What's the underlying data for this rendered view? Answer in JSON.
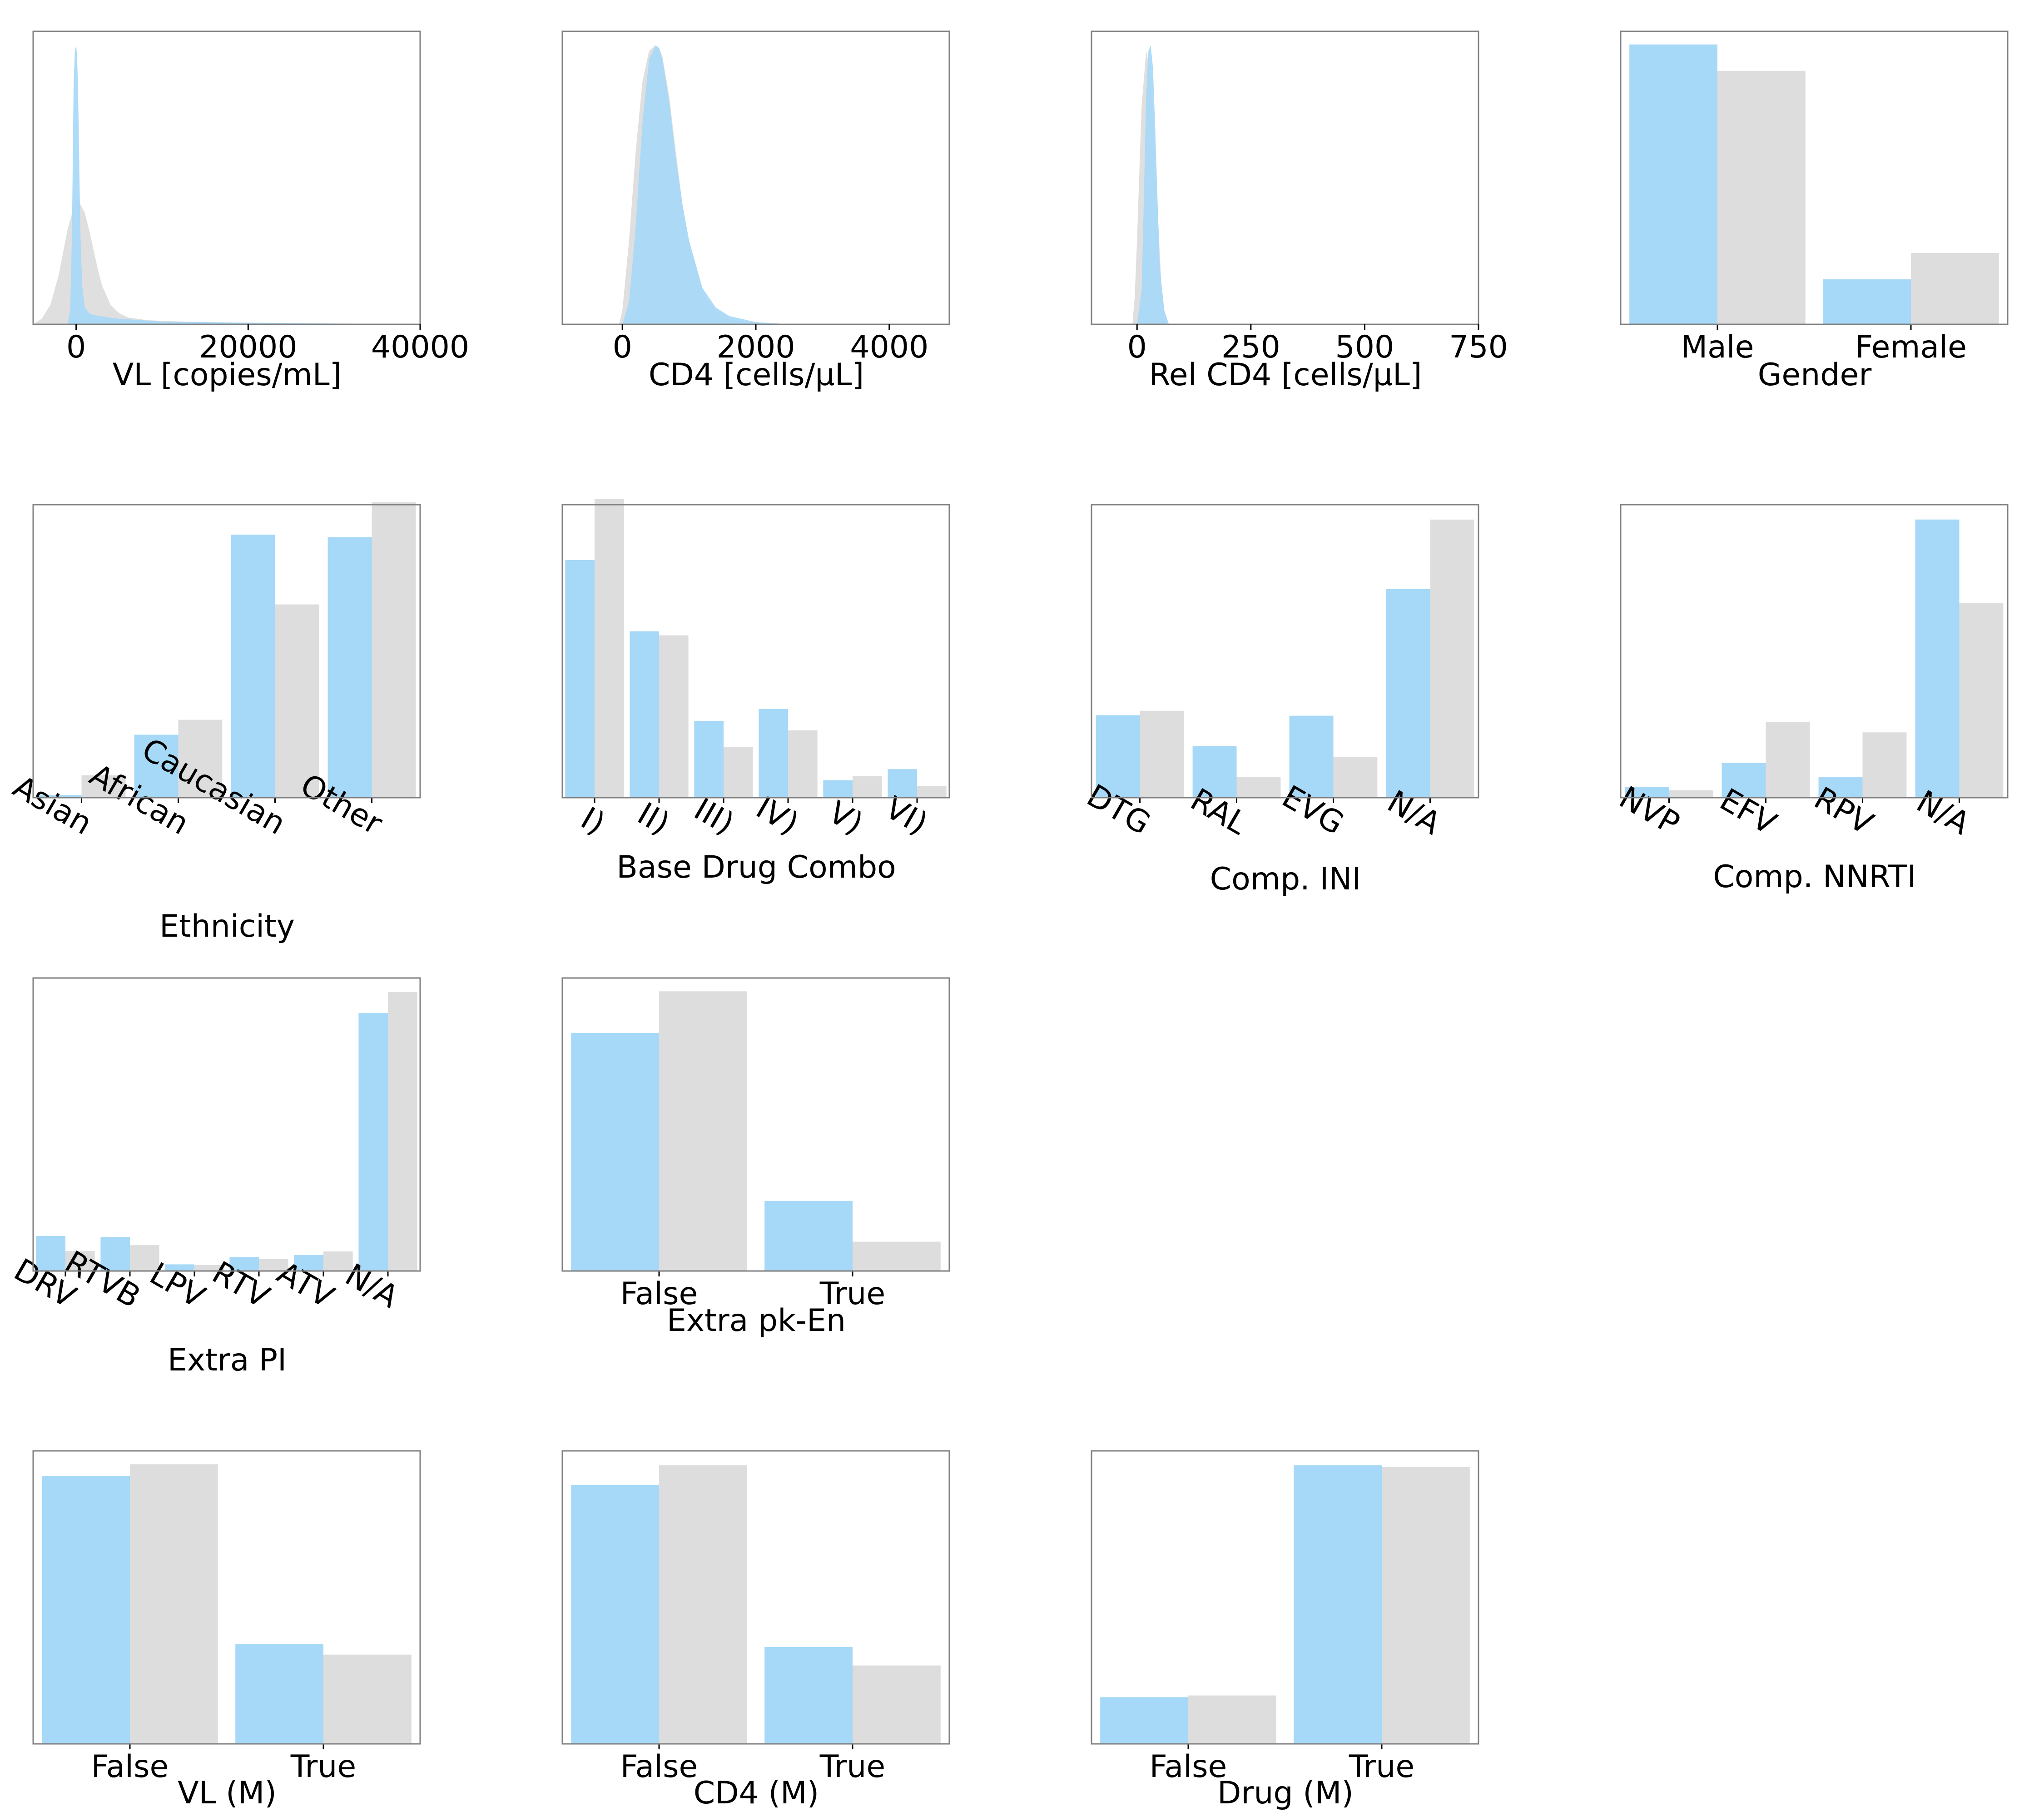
{
  "colors": {
    "series_a": "#a6d8f7",
    "series_b": "#dddddd",
    "frame": "#808080"
  },
  "chart_data": [
    {
      "type": "area",
      "xlabel": "VL [copies/mL]",
      "xlim": [
        -5000,
        40000
      ],
      "xticks": [
        0,
        20000,
        40000
      ],
      "xtick_labels": [
        "0",
        "20000",
        "40000"
      ],
      "ylim": [
        0,
        1.05
      ],
      "series": [
        {
          "x": [
            -5000,
            -4000,
            -3000,
            -2000,
            -1000,
            0,
            500,
            1000,
            1500,
            2000,
            2500,
            3000,
            4000,
            5000,
            6000,
            8000,
            10000,
            15000,
            20000,
            30000,
            40000
          ],
          "values": [
            0.0,
            0.02,
            0.07,
            0.18,
            0.34,
            0.45,
            0.43,
            0.4,
            0.34,
            0.27,
            0.2,
            0.14,
            0.07,
            0.04,
            0.025,
            0.016,
            0.012,
            0.008,
            0.005,
            0.002,
            0.0
          ]
        },
        {
          "x": [
            -1000,
            -700,
            -500,
            -300,
            -150,
            0,
            100,
            200,
            300,
            400,
            500,
            700,
            1000,
            1500,
            2000,
            3000,
            5000,
            8000,
            10000,
            20000,
            30000,
            40000
          ],
          "values": [
            0.0,
            0.05,
            0.3,
            0.85,
            0.98,
            1.0,
            0.96,
            0.86,
            0.7,
            0.5,
            0.32,
            0.14,
            0.06,
            0.04,
            0.034,
            0.028,
            0.02,
            0.014,
            0.01,
            0.006,
            0.003,
            0.001
          ]
        }
      ]
    },
    {
      "type": "area",
      "xlabel": "CD4 [cells/µL]",
      "xlim": [
        -900,
        4900
      ],
      "xticks": [
        0,
        2000,
        4000
      ],
      "xtick_labels": [
        "0",
        "2000",
        "4000"
      ],
      "ylim": [
        0,
        1.05
      ],
      "series": [
        {
          "x": [
            -50,
            0,
            100,
            200,
            300,
            400,
            500,
            550,
            600,
            700,
            800,
            900,
            1000,
            1200,
            1400,
            1600,
            2000,
            2400
          ],
          "values": [
            0.0,
            0.05,
            0.3,
            0.62,
            0.87,
            0.98,
            1.0,
            0.99,
            0.96,
            0.82,
            0.62,
            0.43,
            0.28,
            0.11,
            0.05,
            0.02,
            0.004,
            0.0
          ]
        },
        {
          "x": [
            0,
            100,
            200,
            300,
            400,
            500,
            550,
            600,
            700,
            800,
            900,
            1000,
            1200,
            1400,
            1600,
            2000,
            2400,
            3000
          ],
          "values": [
            0.0,
            0.08,
            0.35,
            0.72,
            0.95,
            1.0,
            0.99,
            0.95,
            0.8,
            0.6,
            0.43,
            0.3,
            0.13,
            0.06,
            0.03,
            0.008,
            0.002,
            0.0
          ]
        }
      ]
    },
    {
      "type": "area",
      "xlabel": "Rel CD4 [cells/µL]",
      "xlim": [
        -100,
        750
      ],
      "xticks": [
        0,
        250,
        500,
        750
      ],
      "xtick_labels": [
        "0",
        "250",
        "500",
        "750"
      ],
      "ylim": [
        0,
        1.05
      ],
      "series": [
        {
          "x": [
            -10,
            -5,
            0,
            10,
            20,
            30,
            40,
            50,
            55,
            60,
            65
          ],
          "values": [
            0.0,
            0.1,
            0.3,
            0.78,
            0.98,
            0.9,
            0.6,
            0.25,
            0.1,
            0.03,
            0.0
          ]
        },
        {
          "x": [
            0,
            10,
            15,
            20,
            25,
            30,
            35,
            40,
            45,
            50,
            60,
            70
          ],
          "values": [
            0.0,
            0.12,
            0.45,
            0.82,
            0.98,
            1.0,
            0.92,
            0.7,
            0.45,
            0.2,
            0.05,
            0.0
          ]
        }
      ]
    },
    {
      "type": "bar",
      "xlabel": "Gender",
      "tick_rotation": 0,
      "categories": [
        "Male",
        "Female"
      ],
      "ylim": [
        0,
        0.78
      ],
      "series": [
        {
          "values": [
            0.745,
            0.12
          ]
        },
        {
          "values": [
            0.675,
            0.19
          ]
        }
      ]
    },
    {
      "type": "bar",
      "xlabel": "Ethnicity",
      "tick_rotation": 30,
      "categories": [
        "Asian",
        "African",
        "Caucasian",
        "Other"
      ],
      "ylim": [
        0,
        0.47
      ],
      "series": [
        {
          "values": [
            0.004,
            0.101,
            0.422,
            0.418
          ]
        },
        {
          "values": [
            0.036,
            0.125,
            0.31,
            0.474
          ]
        }
      ]
    },
    {
      "type": "bar",
      "xlabel": "Base Drug Combo",
      "tick_rotation": 30,
      "categories": [
        "I)",
        "II)",
        "III)",
        "IV)",
        "V)",
        "VI)"
      ],
      "ylim": [
        0,
        0.37
      ],
      "series": [
        {
          "values": [
            0.3,
            0.21,
            0.097,
            0.112,
            0.022,
            0.036
          ]
        },
        {
          "values": [
            0.377,
            0.205,
            0.064,
            0.085,
            0.027,
            0.015
          ]
        }
      ]
    },
    {
      "type": "bar",
      "xlabel": "Comp. INI",
      "tick_rotation": 30,
      "categories": [
        "DTG",
        "RAL",
        "EVG",
        "N/A"
      ],
      "ylim": [
        0,
        0.59
      ],
      "series": [
        {
          "values": [
            0.166,
            0.104,
            0.165,
            0.42
          ]
        },
        {
          "values": [
            0.175,
            0.042,
            0.082,
            0.56
          ]
        }
      ]
    },
    {
      "type": "bar",
      "xlabel": "Comp. NNRTI",
      "tick_rotation": 30,
      "categories": [
        "NVP",
        "EFV",
        "RPV",
        "N/A"
      ],
      "ylim": [
        0,
        0.79
      ],
      "series": [
        {
          "values": [
            0.029,
            0.094,
            0.055,
            0.75
          ]
        },
        {
          "values": [
            0.02,
            0.204,
            0.176,
            0.525
          ]
        }
      ]
    },
    {
      "type": "bar",
      "xlabel": "Extra PI",
      "tick_rotation": 30,
      "categories": [
        "DRV",
        "RTVB",
        "LPV",
        "RTV",
        "ATV",
        "N/A"
      ],
      "ylim": [
        0,
        0.795
      ],
      "series": [
        {
          "values": [
            0.095,
            0.092,
            0.018,
            0.038,
            0.043,
            0.7
          ]
        },
        {
          "values": [
            0.054,
            0.07,
            0.016,
            0.032,
            0.053,
            0.757
          ]
        }
      ]
    },
    {
      "type": "bar",
      "xlabel": "Extra pk-En",
      "tick_rotation": 0,
      "categories": [
        "False",
        "True"
      ],
      "ylim": [
        0,
        0.88
      ],
      "series": [
        {
          "values": [
            0.715,
            0.21
          ]
        },
        {
          "values": [
            0.84,
            0.088
          ]
        }
      ]
    },
    {
      "type": "bar",
      "xlabel": "VL (M)",
      "tick_rotation": 0,
      "categories": [
        "False",
        "True"
      ],
      "ylim": [
        0,
        0.88
      ],
      "series": [
        {
          "values": [
            0.805,
            0.3
          ]
        },
        {
          "values": [
            0.84,
            0.268
          ]
        }
      ]
    },
    {
      "type": "bar",
      "xlabel": "CD4 (M)",
      "tick_rotation": 0,
      "categories": [
        "False",
        "True"
      ],
      "ylim": [
        0,
        0.86
      ],
      "series": [
        {
          "values": [
            0.76,
            0.284
          ]
        },
        {
          "values": [
            0.818,
            0.23
          ]
        }
      ]
    },
    {
      "type": "bar",
      "xlabel": "Drug (M)",
      "tick_rotation": 0,
      "categories": [
        "False",
        "True"
      ],
      "ylim": [
        0,
        0.86
      ],
      "series": [
        {
          "values": [
            0.137,
            0.818
          ]
        },
        {
          "values": [
            0.142,
            0.812
          ]
        }
      ]
    }
  ]
}
